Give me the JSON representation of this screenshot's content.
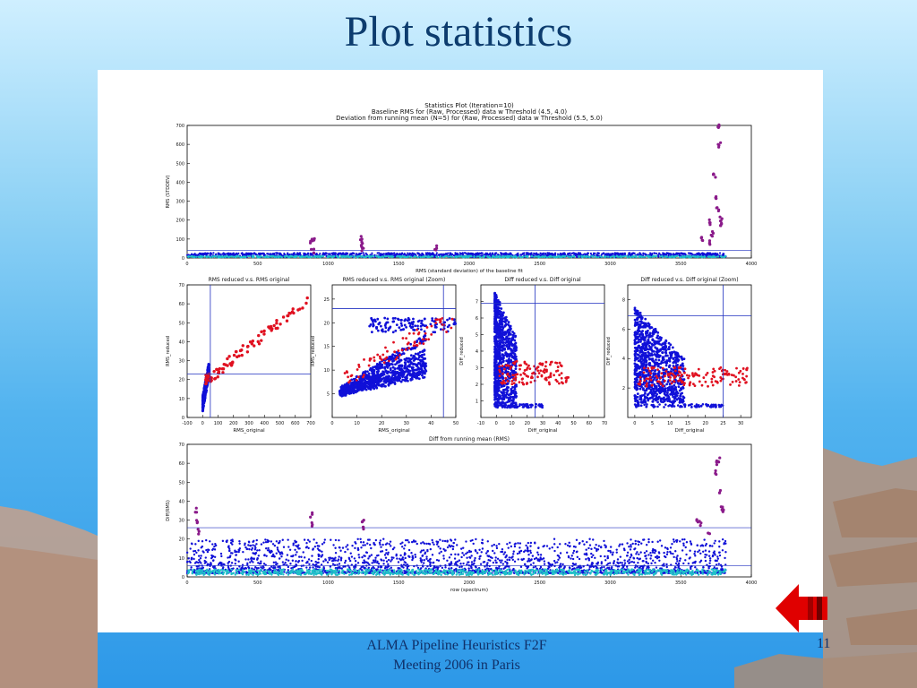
{
  "slide": {
    "title": "Plot statistics",
    "footer_line1": "ALMA Pipeline Heuristics F2F",
    "footer_line2": "Meeting 2006 in Paris",
    "page_number": "11"
  },
  "colors": {
    "title": "#0d3c6e",
    "raw_points": "#1010d8",
    "processed_points": "#20c0c8",
    "outlier_points": "#e01020",
    "flag_points": "#8a1a8a",
    "threshold_line": "#2030c0",
    "nav_arrow": "#e00000"
  },
  "icons": {
    "nav": "red-left-arrow-icon"
  },
  "chart_data": [
    {
      "id": "top",
      "type": "scatter",
      "title": "Statistics Plot (Iteration=10)",
      "subtitle1": "Baseline RMS for (Raw, Processed) data w Threshold (4.5, 4.0)",
      "subtitle2": "Deviation from running mean (N=5) for (Raw, Processed) data w Threshold (5.5, 5.0)",
      "xlabel": "RMS (standard deviation) of the baseline fit",
      "ylabel": "RMS (STDDEV)",
      "xlim": [
        0,
        4000
      ],
      "ylim": [
        0,
        700
      ],
      "xticks": [
        "0",
        "500",
        "1000",
        "1500",
        "2000",
        "2500",
        "3000",
        "3500",
        "4000"
      ],
      "yticks": [
        "0",
        "100",
        "200",
        "300",
        "400",
        "500",
        "600",
        "700"
      ],
      "hlines": [
        40
      ],
      "series": [
        {
          "role": "flagged",
          "points": [
            [
              880,
              90
            ],
            [
              890,
              40
            ],
            [
              895,
              100
            ],
            [
              1230,
              110
            ],
            [
              1240,
              70
            ],
            [
              1245,
              50
            ],
            [
              1760,
              50
            ],
            [
              3710,
              190
            ],
            [
              3720,
              130
            ],
            [
              3740,
              440
            ],
            [
              3750,
              320
            ],
            [
              3760,
              260
            ],
            [
              3770,
              700
            ],
            [
              3775,
              600
            ],
            [
              3785,
              210
            ],
            [
              3790,
              170
            ],
            [
              3650,
              100
            ],
            [
              3700,
              80
            ]
          ]
        }
      ]
    },
    {
      "id": "rms-red-v-orig",
      "type": "scatter",
      "title": "RMS reduced v.s. RMS original",
      "xlabel": "RMS_original",
      "ylabel": "RMS_reduced",
      "xlim": [
        -100,
        700
      ],
      "ylim": [
        0,
        70
      ],
      "xticks": [
        "-100",
        "0",
        "100",
        "200",
        "300",
        "400",
        "500",
        "600",
        "700"
      ],
      "yticks": [
        "0",
        "10",
        "20",
        "30",
        "40",
        "50",
        "60",
        "70"
      ],
      "vline": 50,
      "hline": 23
    },
    {
      "id": "rms-zoom",
      "type": "scatter",
      "title": "RMS reduced v.s. RMS original (Zoom)",
      "xlabel": "RMS_original",
      "ylabel": "RMS_reduced",
      "xlim": [
        0,
        50
      ],
      "ylim": [
        0,
        28
      ],
      "xticks": [
        "0",
        "10",
        "20",
        "30",
        "40",
        "50"
      ],
      "yticks": [
        "5",
        "10",
        "15",
        "20",
        "25"
      ],
      "vline": 45,
      "hline": 23
    },
    {
      "id": "diff-red-v-orig",
      "type": "scatter",
      "title": "Diff reduced v.s. Diff original",
      "xlabel": "Diff_original",
      "ylabel": "Diff_reduced",
      "xlim": [
        -10,
        70
      ],
      "ylim": [
        0,
        8
      ],
      "xticks": [
        "-10",
        "0",
        "10",
        "20",
        "30",
        "40",
        "50",
        "60",
        "70"
      ],
      "yticks": [
        "1",
        "2",
        "3",
        "4",
        "5",
        "6",
        "7"
      ],
      "vline": 25,
      "hline": 6.9
    },
    {
      "id": "diff-zoom",
      "type": "scatter",
      "title": "Diff reduced v.s. Diff original (Zoom)",
      "xlabel": "Diff_original",
      "ylabel": "Diff_reduced",
      "xlim": [
        -2,
        33
      ],
      "ylim": [
        0,
        9
      ],
      "xticks": [
        "0",
        "5",
        "10",
        "15",
        "20",
        "25",
        "30"
      ],
      "yticks": [
        "2",
        "4",
        "6",
        "8"
      ],
      "vline": 25,
      "hline": 6.9
    },
    {
      "id": "bottom",
      "type": "scatter",
      "title": "Diff from running mean (RMS)",
      "xlabel": "row (spectrum)",
      "ylabel": "Diff(RMS)",
      "xlim": [
        0,
        4000
      ],
      "ylim": [
        0,
        70
      ],
      "xticks": [
        "0",
        "500",
        "1000",
        "1500",
        "2000",
        "2500",
        "3000",
        "3500",
        "4000"
      ],
      "yticks": [
        "0",
        "10",
        "20",
        "30",
        "40",
        "50",
        "60",
        "70"
      ],
      "hlines": [
        26,
        6
      ],
      "series": [
        {
          "role": "flagged",
          "points": [
            [
              60,
              35
            ],
            [
              70,
              30
            ],
            [
              80,
              24
            ],
            [
              880,
              33
            ],
            [
              890,
              28
            ],
            [
              1245,
              30
            ],
            [
              1250,
              25
            ],
            [
              3620,
              30
            ],
            [
              3640,
              28
            ],
            [
              3700,
              22
            ],
            [
              3760,
              60
            ],
            [
              3770,
              62
            ],
            [
              3780,
              45
            ],
            [
              3790,
              36
            ],
            [
              3800,
              35
            ],
            [
              3750,
              55
            ]
          ]
        }
      ]
    }
  ]
}
